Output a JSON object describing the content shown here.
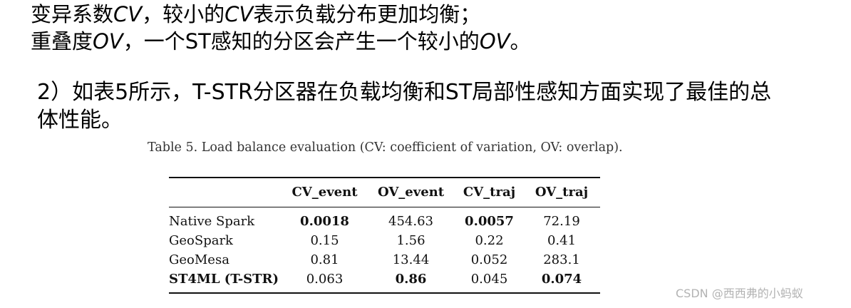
{
  "text": {
    "line1": {
      "p1": "变异系数",
      "cv1": "CV",
      "p2": "，较小的",
      "cv2": "CV",
      "p3": "表示负载分布更加均衡；"
    },
    "line2": {
      "p1": "重叠度",
      "ov1": "OV",
      "p2": "，一个ST感知的分区会产生一个较小的",
      "ov2": "OV",
      "p3": "。"
    },
    "line3": "2）如表5所示，T-STR分区器在负载均衡和ST局部性感知方面实现了最佳的总",
    "line4": "体性能。"
  },
  "table": {
    "caption": "Table 5.  Load balance evaluation (CV: coefficient of variation, OV: overlap).",
    "headers": [
      "",
      "CV_event",
      "OV_event",
      "CV_traj",
      "OV_traj"
    ],
    "rows": [
      {
        "label": "Native Spark",
        "values": [
          "0.0018",
          "454.63",
          "0.0057",
          "72.19"
        ],
        "bold_label": false,
        "bold": [
          true,
          false,
          true,
          false
        ]
      },
      {
        "label": "GeoSpark",
        "values": [
          "0.15",
          "1.56",
          "0.22",
          "0.41"
        ],
        "bold_label": false,
        "bold": [
          false,
          false,
          false,
          false
        ]
      },
      {
        "label": "GeoMesa",
        "values": [
          "0.81",
          "13.44",
          "0.052",
          "283.1"
        ],
        "bold_label": false,
        "bold": [
          false,
          false,
          false,
          false
        ]
      },
      {
        "label": "ST4ML (T-STR)",
        "values": [
          "0.063",
          "0.86",
          "0.045",
          "0.074"
        ],
        "bold_label": true,
        "bold": [
          false,
          true,
          false,
          true
        ]
      }
    ]
  },
  "watermark": "CSDN @西西弗的小蚂蚁"
}
